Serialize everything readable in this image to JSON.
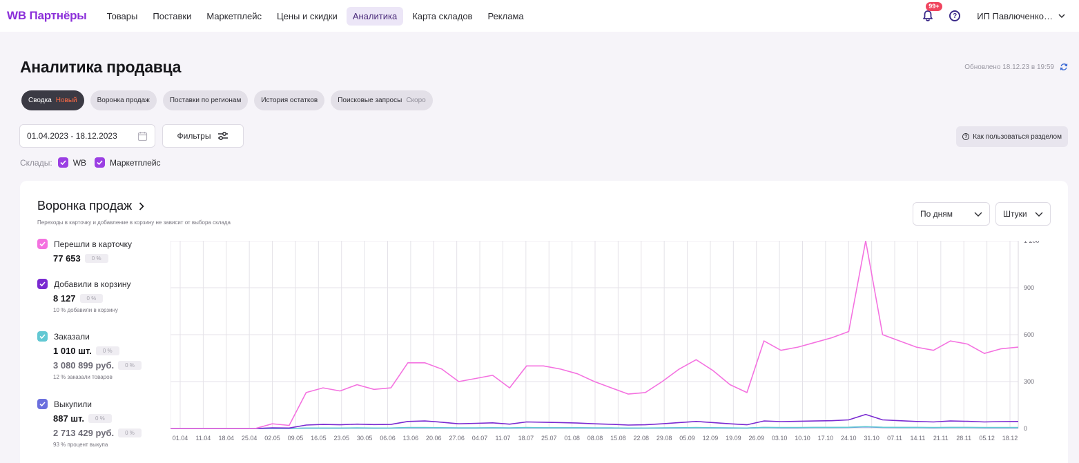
{
  "topbar": {
    "brand": "WB Партнёры",
    "nav": [
      {
        "label": "Товары",
        "active": false
      },
      {
        "label": "Поставки",
        "active": false
      },
      {
        "label": "Маркетплейс",
        "active": false
      },
      {
        "label": "Цены и скидки",
        "active": false
      },
      {
        "label": "Аналитика",
        "active": true
      },
      {
        "label": "Карта складов",
        "active": false
      },
      {
        "label": "Реклама",
        "active": false
      }
    ],
    "notifications_badge": "99+",
    "user": "ИП Павлюченко…"
  },
  "page": {
    "title": "Аналитика продавца",
    "updated": "Обновлено 18.12.23 в 19:59"
  },
  "tabs": [
    {
      "label": "Сводка",
      "tag": "Новый",
      "tag_kind": "new",
      "active": true
    },
    {
      "label": "Воронка продаж",
      "tag": "",
      "tag_kind": "",
      "active": false
    },
    {
      "label": "Поставки по регионам",
      "tag": "",
      "tag_kind": "",
      "active": false
    },
    {
      "label": "История остатков",
      "tag": "",
      "tag_kind": "",
      "active": false
    },
    {
      "label": "Поисковые запросы",
      "tag": "Скоро",
      "tag_kind": "soon",
      "active": false
    }
  ],
  "filters": {
    "date_range": "01.04.2023 - 18.12.2023",
    "filters_label": "Фильтры",
    "howto_label": "Как пользоваться разделом",
    "warehouses_label": "Склады:",
    "warehouses": [
      {
        "label": "WB",
        "checked": true
      },
      {
        "label": "Маркетплейс",
        "checked": true
      }
    ]
  },
  "card": {
    "title": "Воронка продаж",
    "subtitle": "Переходы в карточку и добавление в корзину не зависит от выбора склада",
    "period_select": "По дням",
    "unit_select": "Штуки",
    "legend": [
      {
        "label": "Перешли в карточку",
        "color": "#f472e0",
        "value": "77 653",
        "pct": "0 %",
        "money": "",
        "money_pct": "",
        "note": ""
      },
      {
        "label": "Добавили в корзину",
        "color": "#7a2ad1",
        "value": "8 127",
        "pct": "0 %",
        "money": "",
        "money_pct": "",
        "note": "10 % добавили в корзину"
      },
      {
        "label": "Заказали",
        "color": "#62c8d3",
        "value": "1 010 шт.",
        "pct": "0 %",
        "money": "3 080 899 руб.",
        "money_pct": "0 %",
        "note": "12 % заказали товаров"
      },
      {
        "label": "Выкупили",
        "color": "#6b6fde",
        "value": "887 шт.",
        "pct": "0 %",
        "money": "2 713 429 руб.",
        "money_pct": "0 %",
        "note": "93 % процент выкупа"
      }
    ]
  },
  "chart_data": {
    "type": "line",
    "x_labels": [
      "01.04",
      "11.04",
      "18.04",
      "25.04",
      "02.05",
      "09.05",
      "16.05",
      "23.05",
      "30.05",
      "06.06",
      "13.06",
      "20.06",
      "27.06",
      "04.07",
      "11.07",
      "18.07",
      "25.07",
      "01.08",
      "08.08",
      "15.08",
      "22.08",
      "29.08",
      "05.09",
      "12.09",
      "19.09",
      "26.09",
      "03.10",
      "10.10",
      "17.10",
      "24.10",
      "31.10",
      "07.11",
      "14.11",
      "21.11",
      "28.11",
      "05.12",
      "18.12"
    ],
    "y_ticks": [
      0,
      300,
      600,
      900,
      1200
    ],
    "ylim": [
      0,
      1200
    ],
    "series": [
      {
        "name": "Перешли в карточку",
        "color": "#f472e0",
        "values": [
          0,
          0,
          0,
          0,
          0,
          0,
          30,
          20,
          230,
          260,
          240,
          280,
          250,
          260,
          420,
          420,
          380,
          300,
          320,
          340,
          260,
          400,
          400,
          380,
          350,
          300,
          260,
          220,
          230,
          300,
          380,
          440,
          370,
          280,
          230,
          560,
          500,
          520,
          550,
          580,
          620,
          1200,
          600,
          560,
          520,
          500,
          560,
          540,
          480,
          510,
          520
        ]
      },
      {
        "name": "Добавили в корзину",
        "color": "#7a2ad1",
        "values": [
          0,
          0,
          0,
          0,
          0,
          0,
          4,
          3,
          22,
          26,
          24,
          28,
          25,
          26,
          45,
          48,
          40,
          30,
          33,
          36,
          28,
          42,
          40,
          38,
          35,
          30,
          27,
          22,
          24,
          30,
          38,
          45,
          38,
          30,
          24,
          48,
          44,
          46,
          48,
          50,
          55,
          90,
          55,
          50,
          45,
          42,
          48,
          46,
          42,
          44,
          45
        ]
      },
      {
        "name": "Заказали",
        "color": "#62c8d3",
        "values": [
          0,
          0,
          0,
          0,
          0,
          0,
          0,
          0,
          3,
          3,
          3,
          4,
          3,
          3,
          6,
          6,
          5,
          4,
          4,
          5,
          4,
          6,
          5,
          5,
          5,
          4,
          4,
          3,
          3,
          4,
          5,
          6,
          5,
          4,
          3,
          7,
          6,
          6,
          7,
          7,
          8,
          12,
          8,
          7,
          7,
          6,
          7,
          7,
          6,
          6,
          6
        ]
      },
      {
        "name": "Выкупили",
        "color": "#6b6fde",
        "values": [
          0,
          0,
          0,
          0,
          0,
          0,
          0,
          0,
          2,
          2,
          2,
          3,
          2,
          3,
          5,
          5,
          4,
          3,
          3,
          4,
          3,
          5,
          4,
          4,
          4,
          3,
          3,
          2,
          3,
          3,
          4,
          5,
          4,
          3,
          3,
          6,
          5,
          5,
          6,
          6,
          7,
          10,
          7,
          6,
          6,
          5,
          6,
          6,
          5,
          5,
          5
        ]
      }
    ]
  }
}
